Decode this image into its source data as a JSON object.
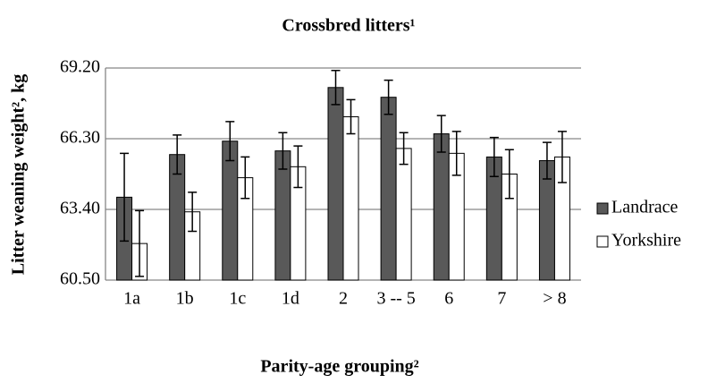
{
  "chart_data": {
    "type": "bar",
    "title": "Crossbred litters¹",
    "y_label": "Litter weaning weight², kg",
    "x_label": "Parity-age grouping²",
    "categories": [
      "1a",
      "1b",
      "1c",
      "1d",
      "2",
      "3 -- 5",
      "6",
      "7",
      "> 8"
    ],
    "series": [
      {
        "name": "Landrace",
        "color": "#595959",
        "values": [
          63.9,
          65.65,
          66.2,
          65.8,
          68.4,
          68.0,
          66.5,
          65.55,
          65.4
        ],
        "errors": [
          1.8,
          0.8,
          0.8,
          0.75,
          0.7,
          0.7,
          0.75,
          0.8,
          0.75
        ]
      },
      {
        "name": "Yorkshire",
        "color": "#ffffff",
        "values": [
          62.0,
          63.3,
          64.7,
          65.15,
          67.2,
          65.9,
          65.7,
          64.85,
          65.55
        ],
        "errors": [
          1.35,
          0.8,
          0.85,
          0.85,
          0.7,
          0.65,
          0.9,
          1.0,
          1.05
        ]
      }
    ],
    "ylim": [
      60.5,
      69.2
    ],
    "yticks": [
      {
        "value": 60.5,
        "label": "60.50"
      },
      {
        "value": 63.4,
        "label": "63.40"
      },
      {
        "value": 66.3,
        "label": "66.30"
      },
      {
        "value": 69.2,
        "label": "69.20"
      }
    ],
    "grid": true,
    "legend": "right"
  }
}
